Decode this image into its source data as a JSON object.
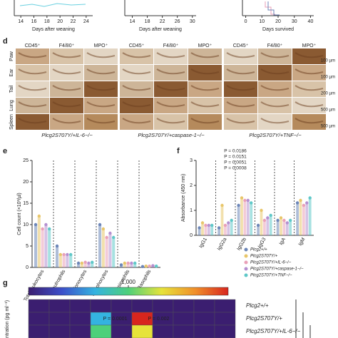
{
  "chart_data": [
    {
      "type": "axis",
      "xlabel": "Days after weaning",
      "xlim": [
        13,
        25
      ],
      "xticks": [
        14,
        16,
        18,
        20,
        22,
        24
      ]
    },
    {
      "type": "axis",
      "xlabel": "Days after weaning",
      "xlim": [
        12,
        31
      ],
      "xticks": [
        14,
        18,
        22,
        26,
        30
      ]
    },
    {
      "type": "axis",
      "xlabel": "Days survived",
      "xlim": [
        -2,
        42
      ],
      "xticks": [
        0,
        10,
        20,
        30,
        40
      ]
    },
    {
      "type": "bar",
      "panel": "e",
      "ylabel": "Cell count (×10³/µl)",
      "ylim": [
        0,
        25
      ],
      "yticks": [
        0,
        5,
        10,
        15,
        20,
        25
      ],
      "categories": [
        "Total leukocytes",
        "Neutrophils",
        "Monocytes",
        "Lymphocytes",
        "Eosinophils",
        "Basophils"
      ],
      "series": [
        {
          "name": "Plcg2+/+",
          "color": "#6c86b8",
          "values": [
            10,
            5,
            1,
            10,
            0.6,
            0.2
          ]
        },
        {
          "name": "Plcg2S707Y/+",
          "color": "#e8c66a",
          "values": [
            12,
            3,
            1,
            9,
            1,
            0.3
          ]
        },
        {
          "name": "Plcg2S707Y/+IL-6−/−",
          "color": "#e9a0b8",
          "values": [
            9,
            3,
            1.2,
            7,
            1,
            0.3
          ]
        },
        {
          "name": "Plcg2S707Y/+caspase-1−/−",
          "color": "#b48fd0",
          "values": [
            10,
            3,
            1,
            8,
            1,
            0.4
          ]
        },
        {
          "name": "Plcg2S707Y/+TNF−/−",
          "color": "#5fc8c8",
          "values": [
            9,
            3,
            1.2,
            7,
            1,
            0.3
          ]
        }
      ]
    },
    {
      "type": "bar",
      "panel": "f",
      "ylabel": "Absorbance (450 nm)",
      "ylim": [
        0,
        3
      ],
      "yticks": [
        0,
        1,
        2,
        3
      ],
      "categories": [
        "IgG1",
        "IgG2a",
        "IgG2b",
        "IgG3",
        "IgA",
        "IgM"
      ],
      "annotations": [
        "P = 0.0186",
        "P = 0.0151",
        "P = 0.0051",
        "P = 0.0008"
      ],
      "series": [
        {
          "name": "Plcg2+/+",
          "color": "#6c86b8",
          "values": [
            0.3,
            0.3,
            1.2,
            0.4,
            0.6,
            1.3
          ]
        },
        {
          "name": "Plcg2S707Y/+",
          "color": "#e8c66a",
          "values": [
            0.5,
            1.2,
            1.5,
            1.0,
            0.7,
            1.4
          ]
        },
        {
          "name": "Plcg2S707Y/+IL-6−/−",
          "color": "#e9a0b8",
          "values": [
            0.4,
            0.4,
            1.4,
            0.6,
            0.6,
            1.2
          ]
        },
        {
          "name": "Plcg2S707Y/+caspase-1−/−",
          "color": "#b48fd0",
          "values": [
            0.4,
            0.5,
            1.4,
            0.7,
            0.5,
            1.3
          ]
        },
        {
          "name": "Plcg2S707Y/+TNF−/−",
          "color": "#5fc8c8",
          "values": [
            0.4,
            0.6,
            1.3,
            0.8,
            0.6,
            1.5
          ]
        }
      ]
    },
    {
      "type": "heatmap",
      "panel": "g",
      "ylabel": "ntration (pg ml⁻¹)",
      "clim": [
        0,
        2000
      ],
      "cticks": [
        {
          "value": 1000,
          "label": "1,000"
        }
      ],
      "rows": [
        "Plcg2+/+",
        "Plcg2S707Y/+",
        "Plcg2S707Y/+IL-6−/−"
      ],
      "values": [
        [
          80,
          90,
          70,
          85,
          95,
          80,
          75,
          90,
          85,
          80
        ],
        [
          90,
          100,
          120,
          700,
          110,
          1900,
          100,
          130,
          110,
          95
        ],
        [
          85,
          95,
          100,
          900,
          100,
          1200,
          110,
          100,
          90,
          85
        ]
      ],
      "annotations": [
        "P = 0.0001",
        "P = 0.002"
      ]
    }
  ],
  "panel_d": {
    "letter": "d",
    "columns": [
      "CD45⁺",
      "F4/80⁺",
      "MPO⁺"
    ],
    "rows": [
      "Paw",
      "Ear",
      "Tail",
      "Lung",
      "Spleen"
    ],
    "scales": [
      "100 µm",
      "100 µm",
      "200 µm",
      "500 µm",
      "500 µm"
    ],
    "groups": [
      "Plcg2S707Y/+IL-6−/−",
      "Plcg2S707Y/+caspase-1−/−",
      "Plcg2S707Y/+TNF−/−"
    ]
  }
}
